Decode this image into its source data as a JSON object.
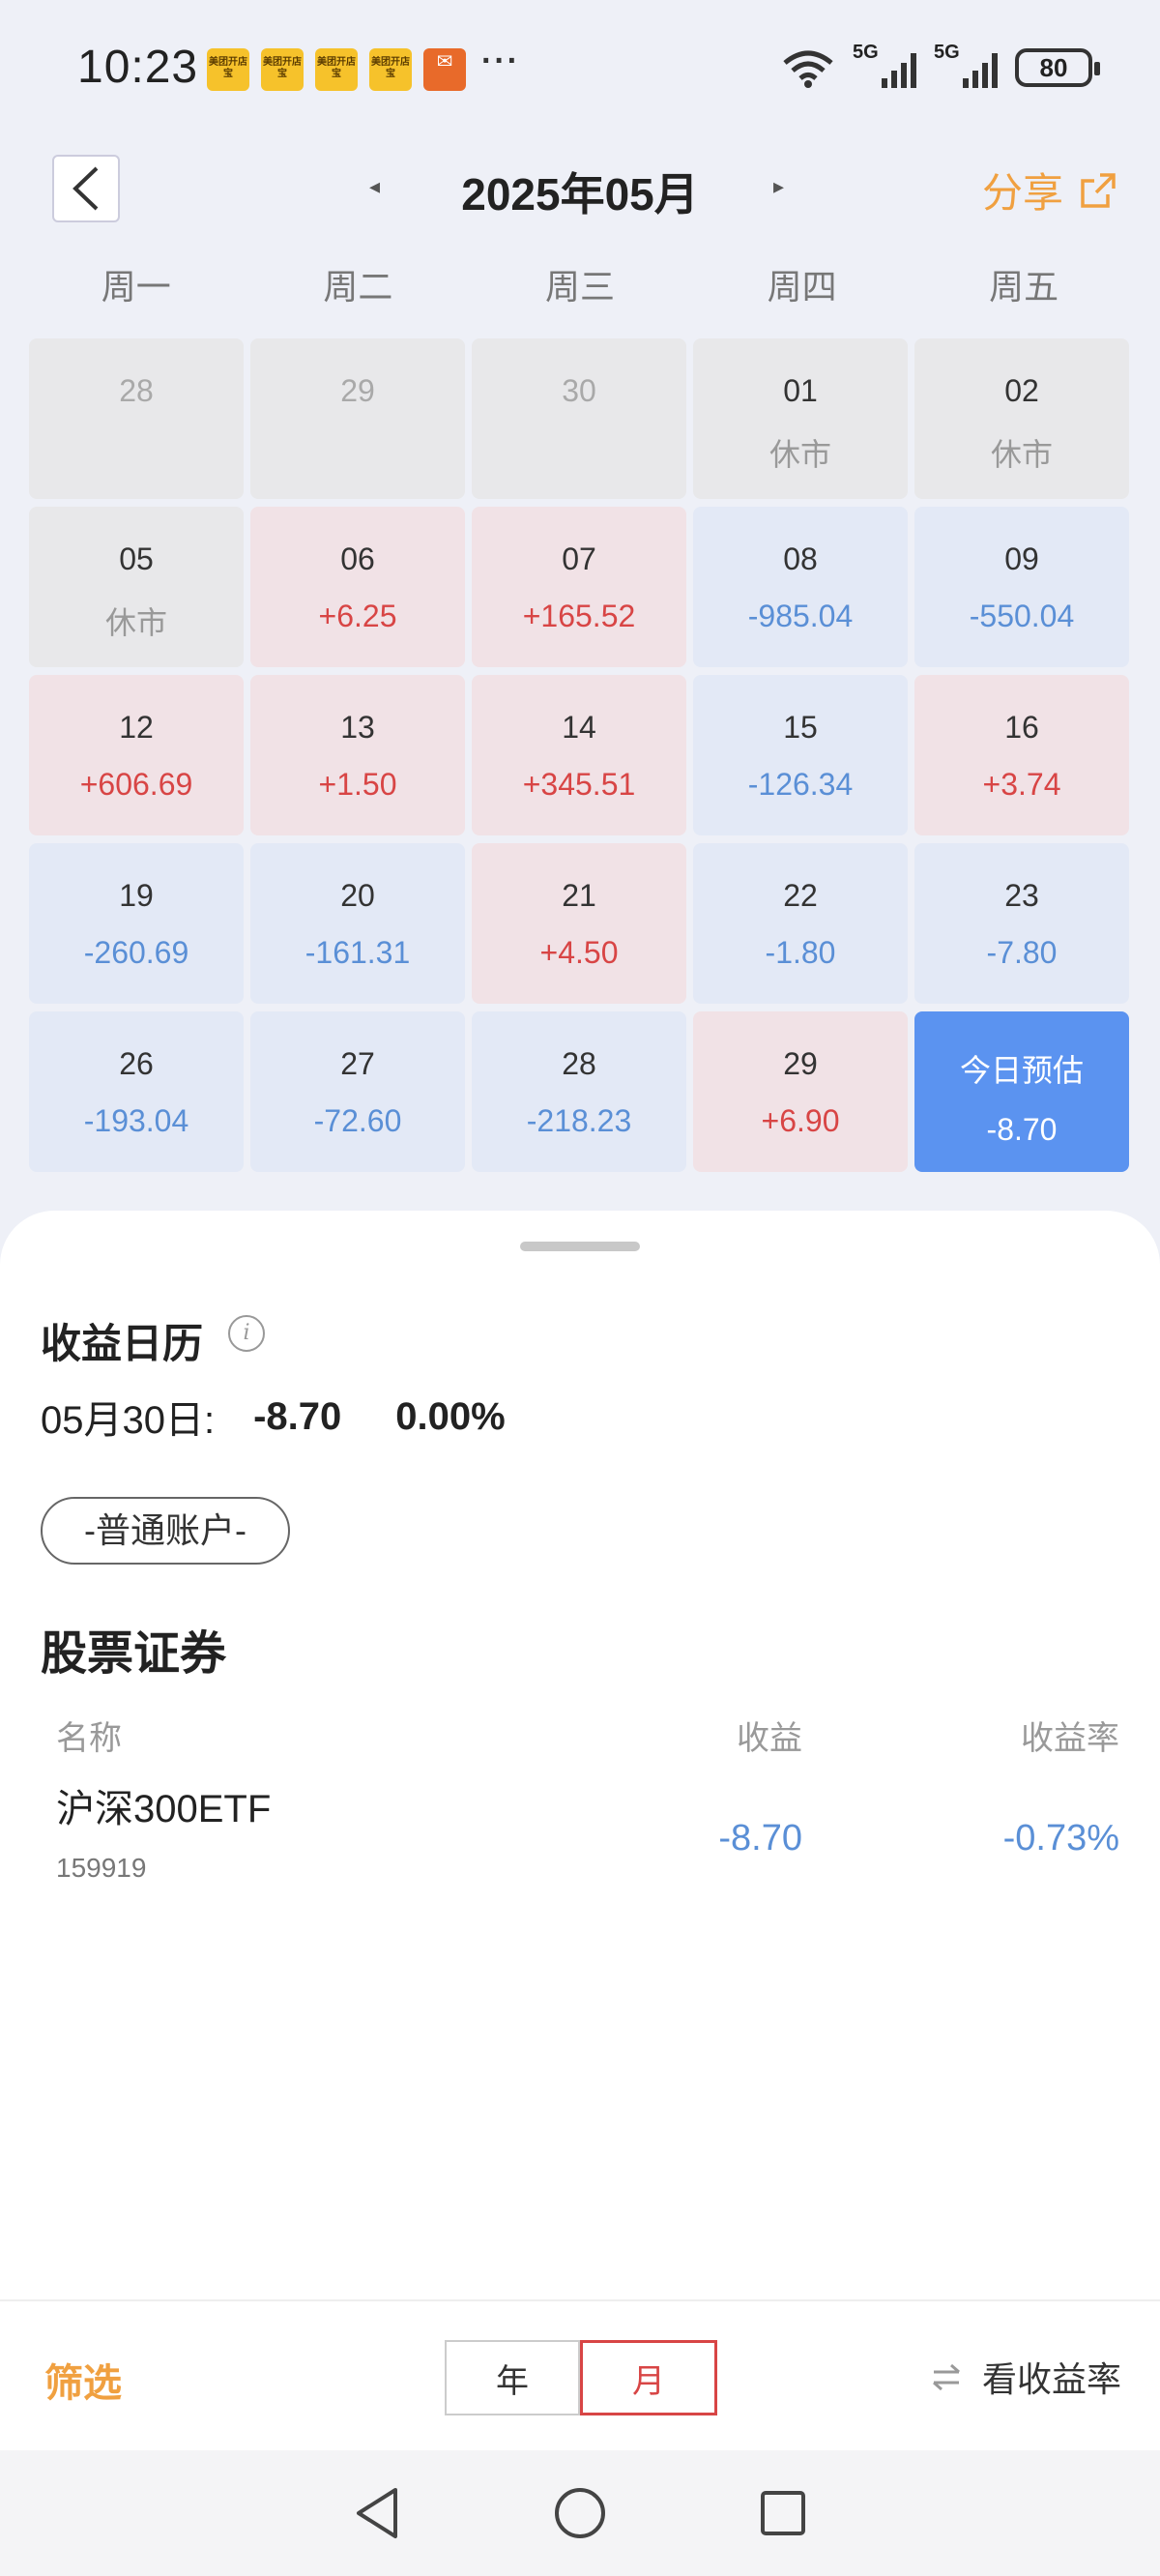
{
  "status_bar": {
    "time": "10:23",
    "notification_icons": [
      "meituan-store-icon",
      "meituan-store-icon",
      "meituan-store-icon",
      "meituan-store-icon",
      "red-envelope-icon"
    ],
    "notif_text": "美团开店宝",
    "more": "···",
    "sim1": "5G",
    "sim2": "5G",
    "battery": "80"
  },
  "header": {
    "month_title": "2025年05月",
    "prev_arrow": "◂",
    "next_arrow": "▸",
    "share_label": "分享"
  },
  "weekdays": [
    "周一",
    "周二",
    "周三",
    "周四",
    "周五"
  ],
  "calendar": {
    "cells": [
      {
        "day": "28",
        "value": "",
        "state": "grey"
      },
      {
        "day": "29",
        "value": "",
        "state": "grey"
      },
      {
        "day": "30",
        "value": "",
        "state": "grey"
      },
      {
        "day": "01",
        "value": "休市",
        "state": "closed"
      },
      {
        "day": "02",
        "value": "休市",
        "state": "closed"
      },
      {
        "day": "05",
        "value": "休市",
        "state": "closed"
      },
      {
        "day": "06",
        "value": "+6.25",
        "state": "pos"
      },
      {
        "day": "07",
        "value": "+165.52",
        "state": "pos"
      },
      {
        "day": "08",
        "value": "-985.04",
        "state": "neg"
      },
      {
        "day": "09",
        "value": "-550.04",
        "state": "neg"
      },
      {
        "day": "12",
        "value": "+606.69",
        "state": "pos"
      },
      {
        "day": "13",
        "value": "+1.50",
        "state": "pos"
      },
      {
        "day": "14",
        "value": "+345.51",
        "state": "pos"
      },
      {
        "day": "15",
        "value": "-126.34",
        "state": "neg"
      },
      {
        "day": "16",
        "value": "+3.74",
        "state": "pos"
      },
      {
        "day": "19",
        "value": "-260.69",
        "state": "neg"
      },
      {
        "day": "20",
        "value": "-161.31",
        "state": "neg"
      },
      {
        "day": "21",
        "value": "+4.50",
        "state": "pos"
      },
      {
        "day": "22",
        "value": "-1.80",
        "state": "neg"
      },
      {
        "day": "23",
        "value": "-7.80",
        "state": "neg"
      },
      {
        "day": "26",
        "value": "-193.04",
        "state": "neg"
      },
      {
        "day": "27",
        "value": "-72.60",
        "state": "neg"
      },
      {
        "day": "28",
        "value": "-218.23",
        "state": "neg"
      },
      {
        "day": "29",
        "value": "+6.90",
        "state": "pos"
      },
      {
        "day": "今日预估",
        "value": "-8.70",
        "state": "today"
      }
    ]
  },
  "summary": {
    "title": "收益日历",
    "info_glyph": "i",
    "date_label": "05月30日:",
    "pnl": "-8.70",
    "rate": "0.00%",
    "account_pill": "-普通账户-"
  },
  "holdings": {
    "section_title": "股票证券",
    "columns": {
      "name": "名称",
      "pnl": "收益",
      "rate": "收益率"
    },
    "rows": [
      {
        "name": "沪深300ETF",
        "code": "159919",
        "pnl": "-8.70",
        "rate": "-0.73%"
      }
    ]
  },
  "toolbar": {
    "filter_label": "筛选",
    "segments": [
      "年",
      "月"
    ],
    "active_segment": "月",
    "view_rate_label": "看收益率"
  },
  "colors": {
    "positive": "#d84545",
    "negative": "#5a8fd6",
    "today": "#5b93f0",
    "accent": "#f0a040"
  }
}
